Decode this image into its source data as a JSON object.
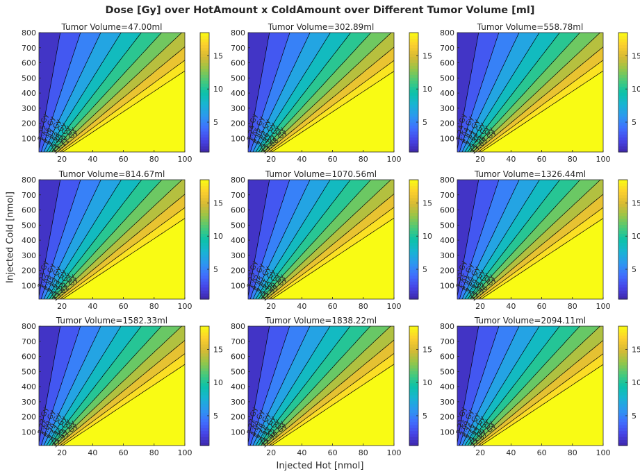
{
  "figure": {
    "title": "Dose [Gy] over HotAmount x ColdAmount over Different Tumor Volume [ml]",
    "xlabel": "Injected Hot [nmol]",
    "ylabel": "Injected Cold [nmol]"
  },
  "chart_data": {
    "type": "contourf",
    "layout": "3x3 grid of filled contour plots",
    "colormap": "parula",
    "x_axis": {
      "label": "Injected Hot [nmol]",
      "range": [
        5,
        100
      ],
      "ticks": [
        20,
        40,
        60,
        80,
        100
      ]
    },
    "y_axis": {
      "label": "Injected Cold [nmol]",
      "range": [
        10,
        800
      ],
      "ticks": [
        100,
        200,
        300,
        400,
        500,
        600,
        700,
        800
      ]
    },
    "colorbar": {
      "range": [
        0.5,
        18.5
      ],
      "ticks": [
        5,
        10,
        15
      ]
    },
    "panels": [
      {
        "title": "Tumor Volume=47.00ml",
        "levels": [
          "2.25 Gy",
          "4.06 Gy",
          "5.87 Gy",
          "7.68 Gy",
          "9.49 Gy",
          "11.30 Gy",
          "13.11 Gy"
        ]
      },
      {
        "title": "Tumor Volume=302.89ml",
        "levels": [
          "2.24 Gy",
          "4.05 Gy",
          "5.85 Gy",
          "7.66 Gy",
          "9.47 Gy",
          "11.27 Gy",
          "13.08 Gy"
        ]
      },
      {
        "title": "Tumor Volume=558.78ml",
        "levels": [
          "2.24 Gy",
          "4.04 Gy",
          "5.84 Gy",
          "7.64 Gy",
          "9.45 Gy",
          "11.25 Gy",
          "13.05 Gy"
        ]
      },
      {
        "title": "Tumor Volume=814.67ml",
        "levels": [
          "2.23 Gy",
          "4.03 Gy",
          "5.83 Gy",
          "7.63 Gy",
          "9.43 Gy",
          "11.22 Gy",
          "13.02 Gy"
        ]
      },
      {
        "title": "Tumor Volume=1070.56ml",
        "levels": [
          "2.23 Gy",
          "4.02 Gy",
          "5.82 Gy",
          "7.61 Gy",
          "9.40 Gy",
          "11.20 Gy",
          "12.99 Gy"
        ]
      },
      {
        "title": "Tumor Volume=1326.44ml",
        "levels": [
          "2.22 Gy",
          "4.01 Gy",
          "5.80 Gy",
          "7.59 Gy",
          "9.38 Gy",
          "11.17 Gy",
          "12.96 Gy"
        ]
      },
      {
        "title": "Tumor Volume=1582.33ml",
        "levels": [
          "2.22 Gy",
          "4.00 Gy",
          "5.79 Gy",
          "7.57 Gy",
          "9.36 Gy",
          "11.14 Gy",
          "12.93 Gy"
        ]
      },
      {
        "title": "Tumor Volume=1838.22ml",
        "levels": [
          "2.22 Gy",
          "4.00 Gy",
          "5.78 Gy",
          "7.56 Gy",
          "9.34 Gy",
          "11.12 Gy",
          "12.90 Gy"
        ]
      },
      {
        "title": "Tumor Volume=2094.11ml",
        "levels": [
          "2.21 Gy",
          "3.99 Gy",
          "5.76 Gy",
          "7.54 Gy",
          "9.32 Gy",
          "11.09 Gy",
          "12.87 Gy"
        ]
      }
    ]
  }
}
